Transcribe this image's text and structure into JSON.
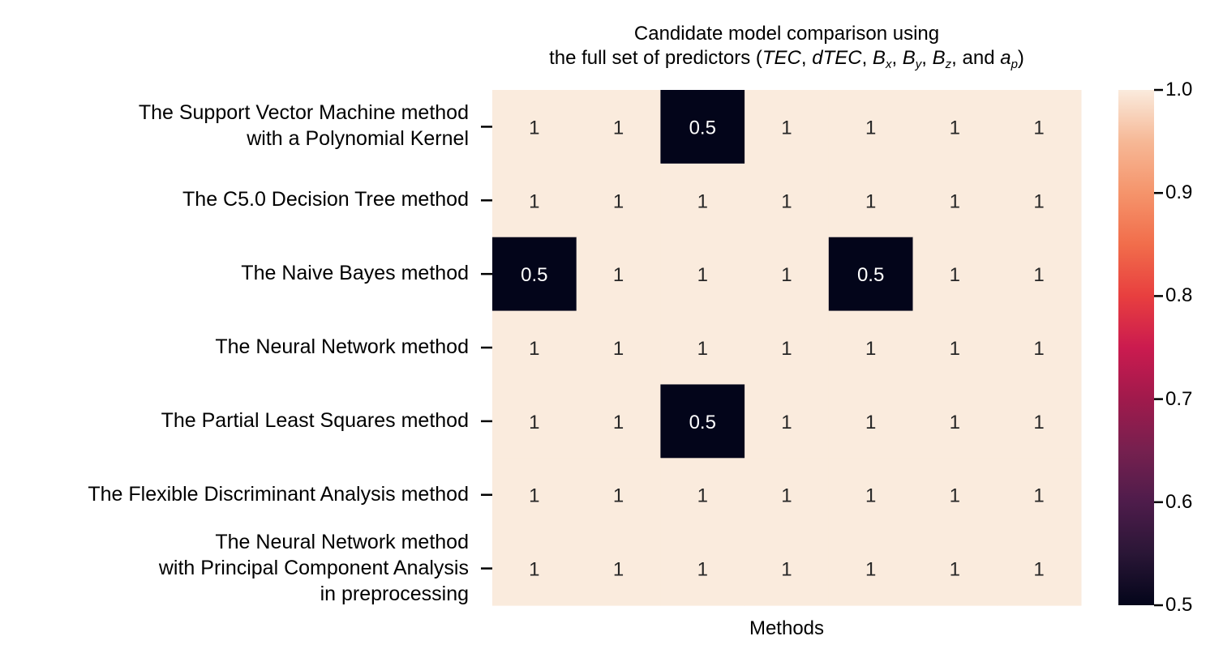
{
  "chart_data": {
    "type": "heatmap",
    "title_line1": "Candidate model comparison using",
    "title_line2": {
      "pre": "the full set of predictors (",
      "tec": "TEC",
      "sep1": ", ",
      "dtec": "dTEC",
      "sep2": ", ",
      "bx_b": "B",
      "bx_s": "x",
      "sep3": ", ",
      "by_b": "B",
      "by_s": "y",
      "sep4": ", ",
      "bz_b": "B",
      "bz_s": "z",
      "sep5": ", and ",
      "ap_b": "a",
      "ap_s": "p",
      "post": ")"
    },
    "xlabel": "Methods",
    "ylabels": [
      "The Support Vector Machine method\nwith a Polynomial Kernel",
      "The C5.0 Decision Tree method",
      "The Naive Bayes method",
      "The Neural Network method",
      "The Partial Least Squares method",
      "The Flexible Discriminant Analysis method",
      "The Neural Network method\nwith Principal Component Analysis\nin preprocessing"
    ],
    "values": [
      [
        1,
        1,
        0.5,
        1,
        1,
        1,
        1
      ],
      [
        1,
        1,
        1,
        1,
        1,
        1,
        1
      ],
      [
        0.5,
        1,
        1,
        1,
        0.5,
        1,
        1
      ],
      [
        1,
        1,
        1,
        1,
        1,
        1,
        1
      ],
      [
        1,
        1,
        0.5,
        1,
        1,
        1,
        1
      ],
      [
        1,
        1,
        1,
        1,
        1,
        1,
        1
      ],
      [
        1,
        1,
        1,
        1,
        1,
        1,
        1
      ]
    ],
    "colorbar": {
      "range": [
        0.5,
        1.0
      ],
      "ticks": [
        "0.5",
        "0.6",
        "0.7",
        "0.8",
        "0.9",
        "1.0"
      ],
      "colormap": "rocket",
      "low_color": "#03051a",
      "high_color": "#faebdd"
    }
  }
}
